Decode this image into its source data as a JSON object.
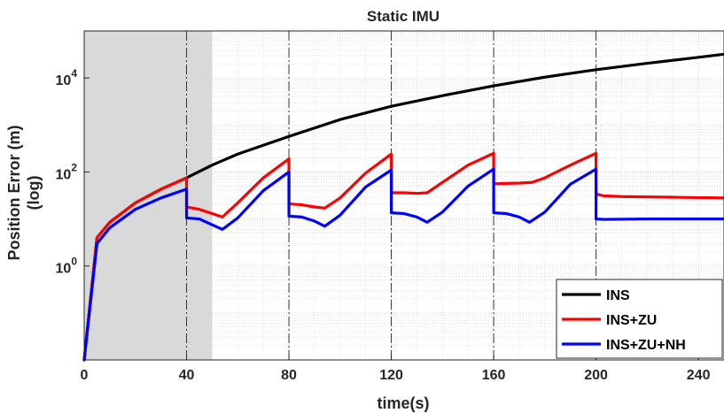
{
  "chart_data": {
    "type": "line",
    "title": "Static IMU",
    "xlabel": "time(s)",
    "ylabel_line1": "Position Error (m)",
    "ylabel_line2": "(log)",
    "y_scale": "log",
    "xlim": [
      0,
      250
    ],
    "ylim": [
      0.01,
      100000
    ],
    "x_ticks": [
      0,
      40,
      80,
      120,
      160,
      200,
      240
    ],
    "y_ticks": [
      {
        "value": 1,
        "base": "10",
        "exp": "0"
      },
      {
        "value": 100,
        "base": "10",
        "exp": "2"
      },
      {
        "value": 10000,
        "base": "10",
        "exp": "4"
      }
    ],
    "grid": true,
    "shaded_region": {
      "x": [
        0,
        50
      ],
      "color": "#d9d9d9"
    },
    "event_lines_x": [
      40,
      80,
      120,
      160,
      200
    ],
    "legend_position": "bottom-right",
    "series": [
      {
        "name": "INS",
        "color": "#000000",
        "x": [
          0,
          5,
          10,
          20,
          30,
          40,
          50,
          60,
          80,
          100,
          120,
          140,
          160,
          180,
          200,
          220,
          240,
          250
        ],
        "y": [
          0.01,
          4,
          8.5,
          22,
          43,
          75,
          140,
          240,
          570,
          1300,
          2500,
          4200,
          6800,
          10400,
          15000,
          20500,
          27500,
          32000
        ]
      },
      {
        "name": "INS+ZU",
        "color": "#ff0000",
        "x": [
          0,
          5,
          10,
          20,
          30,
          40,
          40.01,
          45,
          50,
          54,
          60,
          70,
          80,
          80.01,
          85,
          90,
          94,
          100,
          110,
          120,
          120.01,
          125,
          130,
          134,
          140,
          150,
          160,
          160.01,
          165,
          170,
          175,
          180,
          190,
          200,
          200.01,
          203,
          210,
          230,
          250
        ],
        "y": [
          0.01,
          4,
          8.5,
          22,
          43,
          75,
          18,
          16,
          13,
          11,
          22,
          75,
          190,
          21,
          20,
          18,
          17,
          28,
          95,
          240,
          36,
          36,
          35,
          36,
          60,
          140,
          250,
          56,
          57,
          58,
          60,
          75,
          140,
          250,
          34,
          31,
          30,
          29,
          28
        ]
      },
      {
        "name": "INS+ZU+NH",
        "color": "#0000ff",
        "x": [
          0,
          5,
          10,
          20,
          30,
          40,
          40.01,
          45,
          50,
          54,
          60,
          70,
          80,
          80.01,
          85,
          90,
          94,
          100,
          110,
          120,
          120.01,
          125,
          130,
          134,
          140,
          150,
          160,
          160.01,
          165,
          170,
          174,
          180,
          190,
          200,
          200.01,
          203,
          220,
          250
        ],
        "y": [
          0.01,
          3,
          6.5,
          16,
          28,
          43,
          10.5,
          10,
          7.5,
          6,
          10.5,
          40,
          100,
          11.5,
          11,
          9,
          7,
          12,
          48,
          110,
          13.5,
          13,
          11,
          8.5,
          14,
          50,
          115,
          13.5,
          13,
          11,
          8.5,
          14,
          55,
          115,
          10,
          9.8,
          10,
          10
        ]
      }
    ]
  }
}
